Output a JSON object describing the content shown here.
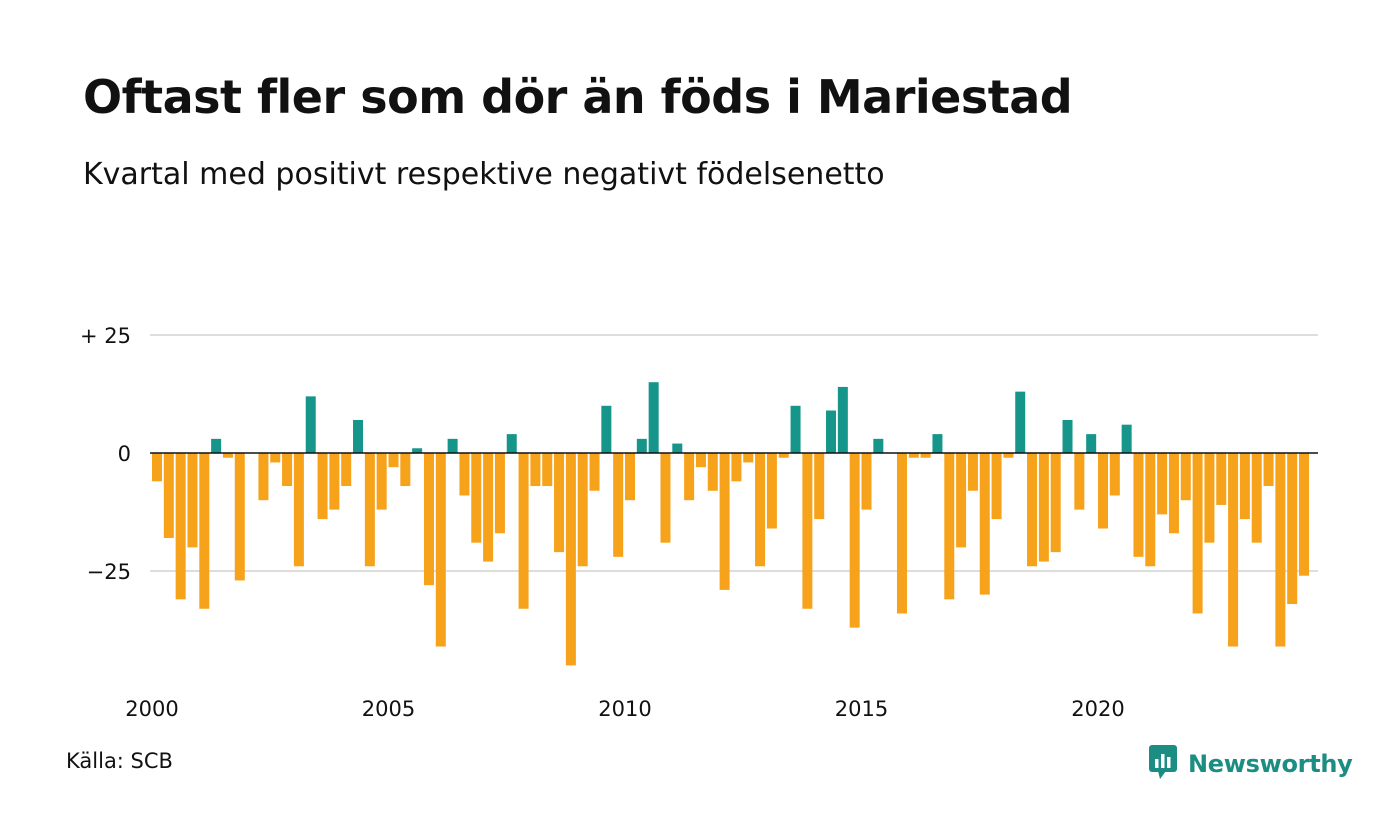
{
  "title": "Oftast fler som dör än föds i Mariestad",
  "subtitle": "Kvartal med positivt respektive negativt födelsenetto",
  "source": "Källa: SCB",
  "brand": "Newsworthy",
  "colors": {
    "positive": "#16968a",
    "negative": "#f6a21b",
    "grid": "#dddddd",
    "zero_line": "#111111",
    "brand": "#1c8d83"
  },
  "icons": {
    "logo": "chat-bar-chart-icon"
  },
  "chart_data": {
    "type": "bar",
    "title": "Oftast fler som dör än föds i Mariestad",
    "subtitle": "Kvartal med positivt respektive negativt födelsenetto",
    "xlabel": "",
    "ylabel": "",
    "ylim": [
      -45,
      25
    ],
    "xlim": [
      2000,
      2024.75
    ],
    "y_ticks": [
      {
        "value": 25,
        "label": "+ 25"
      },
      {
        "value": 0,
        "label": "0"
      },
      {
        "value": -25,
        "label": "−25"
      }
    ],
    "x_ticks": [
      {
        "value": 2000,
        "label": "2000"
      },
      {
        "value": 2005,
        "label": "2005"
      },
      {
        "value": 2010,
        "label": "2010"
      },
      {
        "value": 2015,
        "label": "2015"
      },
      {
        "value": 2020,
        "label": "2020"
      }
    ],
    "grid": true,
    "legend": "none",
    "x_start_year": 2000,
    "periods_per_year": 4,
    "values": [
      -6,
      -18,
      -31,
      -20,
      -33,
      3,
      -1,
      -27,
      0,
      -10,
      -2,
      -7,
      -24,
      12,
      -14,
      -12,
      -7,
      7,
      -24,
      -12,
      -3,
      -7,
      1,
      -28,
      -41,
      3,
      -9,
      -19,
      -23,
      -17,
      4,
      -33,
      -7,
      -7,
      -21,
      -45,
      -24,
      -8,
      10,
      -22,
      -10,
      3,
      15,
      -19,
      2,
      -10,
      -3,
      -8,
      -29,
      -6,
      -2,
      -24,
      -16,
      -1,
      10,
      -33,
      -14,
      9,
      14,
      -37,
      -12,
      3,
      0,
      -34,
      -1,
      -1,
      4,
      -31,
      -20,
      -8,
      -30,
      -14,
      -1,
      13,
      -24,
      -23,
      -21,
      7,
      -12,
      4,
      -16,
      -9,
      6,
      -22,
      -24,
      -13,
      -17,
      -10,
      -34,
      -19,
      -11,
      -41,
      -14,
      -19,
      -7,
      -41,
      -32,
      -26
    ]
  }
}
